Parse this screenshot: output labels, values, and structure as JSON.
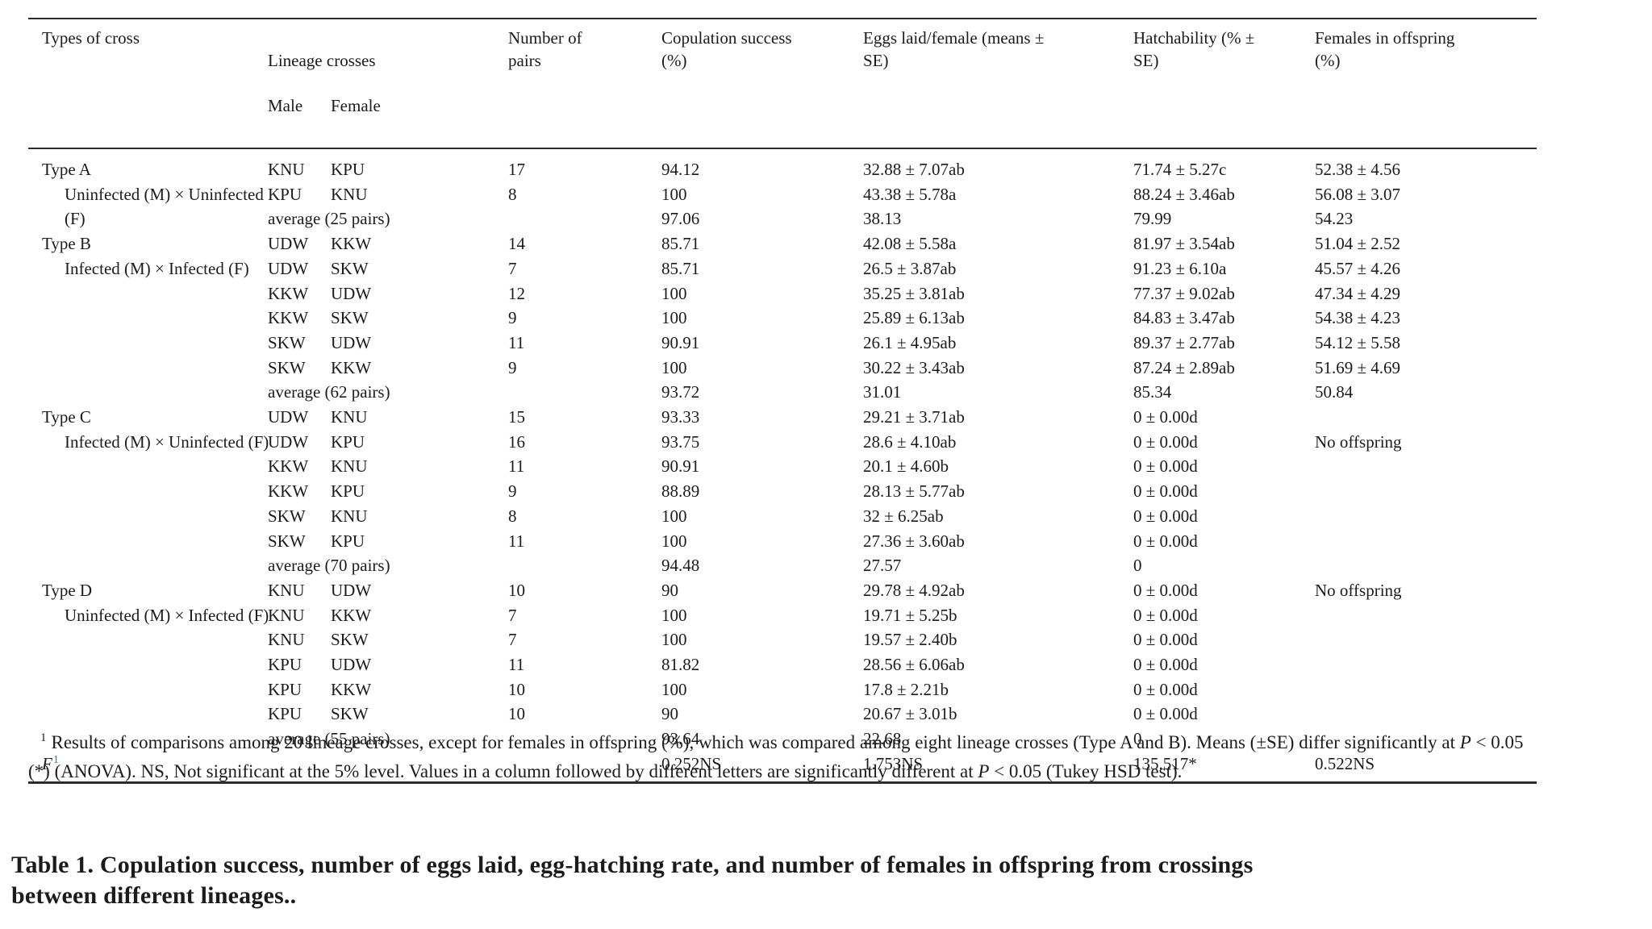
{
  "table": {
    "headers": {
      "types_of_cross": [
        "Types of cross"
      ],
      "lineage": {
        "title": "Lineage crosses",
        "male": "Male",
        "female": "Female"
      },
      "pairs": [
        "Number of",
        "pairs"
      ],
      "copulation": [
        "Copulation success",
        "(%)"
      ],
      "eggs": [
        "Eggs laid/female (means ±",
        "SE)"
      ],
      "hatchability": [
        "Hatchability (% ±",
        "SE)"
      ],
      "females": [
        "Females in offspring",
        "(%)"
      ]
    },
    "rows": [
      {
        "type": "Type A",
        "male": "KNU",
        "female": "KPU",
        "pairs": "17",
        "copulation": "94.12",
        "eggs": "32.88 ± 7.07ab",
        "hatch": "71.74 ± 5.27c",
        "females": "52.38 ± 4.56"
      },
      {
        "type": "Uninfected (M) × Uninfected",
        "indent": 1,
        "male": "KPU",
        "female": "KNU",
        "pairs": "8",
        "copulation": "100",
        "eggs": "43.38 ± 5.78a",
        "hatch": "88.24 ± 3.46ab",
        "females": "56.08 ± 3.07"
      },
      {
        "type": "(F)",
        "indent": 1,
        "average": "average (25 pairs)",
        "copulation": "97.06",
        "eggs": "38.13",
        "hatch": "79.99",
        "females": "54.23"
      },
      {
        "type": "Type B",
        "male": "UDW",
        "female": "KKW",
        "pairs": "14",
        "copulation": "85.71",
        "eggs": "42.08 ± 5.58a",
        "hatch": "81.97 ± 3.54ab",
        "females": "51.04 ± 2.52"
      },
      {
        "type": "Infected (M) × Infected (F)",
        "indent": 1,
        "male": "UDW",
        "female": "SKW",
        "pairs": "7",
        "copulation": "85.71",
        "eggs": "26.5 ± 3.87ab",
        "hatch": "91.23 ± 6.10a",
        "females": "45.57 ± 4.26"
      },
      {
        "male": "KKW",
        "female": "UDW",
        "pairs": "12",
        "copulation": "100",
        "eggs": "35.25 ± 3.81ab",
        "hatch": "77.37 ± 9.02ab",
        "females": "47.34 ± 4.29"
      },
      {
        "male": "KKW",
        "female": "SKW",
        "pairs": "9",
        "copulation": "100",
        "eggs": "25.89 ± 6.13ab",
        "hatch": "84.83 ± 3.47ab",
        "females": "54.38 ± 4.23"
      },
      {
        "male": "SKW",
        "female": "UDW",
        "pairs": "11",
        "copulation": "90.91",
        "eggs": "26.1 ± 4.95ab",
        "hatch": "89.37 ± 2.77ab",
        "females": "54.12 ± 5.58"
      },
      {
        "male": "SKW",
        "female": "KKW",
        "pairs": "9",
        "copulation": "100",
        "eggs": "30.22 ± 3.43ab",
        "hatch": "87.24 ± 2.89ab",
        "females": "51.69 ± 4.69"
      },
      {
        "average": "average (62 pairs)",
        "copulation": "93.72",
        "eggs": "31.01",
        "hatch": "85.34",
        "females": "50.84"
      },
      {
        "type": "Type C",
        "male": "UDW",
        "female": "KNU",
        "pairs": "15",
        "copulation": "93.33",
        "eggs": "29.21 ± 3.71ab",
        "hatch": "0 ± 0.00d"
      },
      {
        "type": "Infected (M) × Uninfected (F)",
        "indent": 1,
        "male": "UDW",
        "female": "KPU",
        "pairs": "16",
        "copulation": "93.75",
        "eggs": "28.6 ± 4.10ab",
        "hatch": "0 ± 0.00d",
        "females": "No offspring"
      },
      {
        "male": "KKW",
        "female": "KNU",
        "pairs": "11",
        "copulation": "90.91",
        "eggs": "20.1 ± 4.60b",
        "hatch": "0 ± 0.00d"
      },
      {
        "male": "KKW",
        "female": "KPU",
        "pairs": "9",
        "copulation": "88.89",
        "eggs": "28.13 ± 5.77ab",
        "hatch": "0 ± 0.00d"
      },
      {
        "male": "SKW",
        "female": "KNU",
        "pairs": "8",
        "copulation": "100",
        "eggs": "32 ± 6.25ab",
        "hatch": "0 ± 0.00d"
      },
      {
        "male": "SKW",
        "female": "KPU",
        "pairs": "11",
        "copulation": "100",
        "eggs": "27.36 ± 3.60ab",
        "hatch": "0 ± 0.00d"
      },
      {
        "average": "average (70 pairs)",
        "copulation": "94.48",
        "eggs": "27.57",
        "hatch": "0"
      },
      {
        "type": "Type D",
        "male": "KNU",
        "female": "UDW",
        "pairs": "10",
        "copulation": "90",
        "eggs": "29.78 ± 4.92ab",
        "hatch": "0 ± 0.00d",
        "females": "No offspring"
      },
      {
        "type": "Uninfected (M) × Infected (F)",
        "indent": 1,
        "male": "KNU",
        "female": "KKW",
        "pairs": "7",
        "copulation": "100",
        "eggs": "19.71 ± 5.25b",
        "hatch": "0 ± 0.00d"
      },
      {
        "male": "KNU",
        "female": "SKW",
        "pairs": "7",
        "copulation": "100",
        "eggs": "19.57 ± 2.40b",
        "hatch": "0 ± 0.00d"
      },
      {
        "male": "KPU",
        "female": "UDW",
        "pairs": "11",
        "copulation": "81.82",
        "eggs": "28.56 ± 6.06ab",
        "hatch": "0 ± 0.00d"
      },
      {
        "male": "KPU",
        "female": "KKW",
        "pairs": "10",
        "copulation": "100",
        "eggs": "17.8 ± 2.21b",
        "hatch": "0 ± 0.00d"
      },
      {
        "male": "KPU",
        "female": "SKW",
        "pairs": "10",
        "copulation": "90",
        "eggs": "20.67 ± 3.01b",
        "hatch": "0 ± 0.00d"
      },
      {
        "average": "average (55 pairs)",
        "copulation": "93.64",
        "eggs": "22.68",
        "hatch": "0"
      }
    ],
    "f_row": {
      "label": "F",
      "sup": "1",
      "copulation": "0.252NS",
      "eggs": "1.753NS",
      "hatch": "135.517*",
      "females": "0.522NS"
    }
  },
  "footnote": {
    "sup": "1",
    "parts": [
      "Results of comparisons among 20 lineage crosses, except for females in offspring (%), which was compared among eight lineage crosses (Type A and B). Means (±SE) differ significantly at ",
      "P",
      " < 0.05 (*) (ANOVA). NS, Not significant at the 5% level. Values in a column followed by different letters are significantly different at ",
      "P",
      " < 0.05 (Tukey HSD test)."
    ]
  },
  "caption": {
    "lines": [
      "Table 1. Copulation success, number of eggs laid, egg-hatching rate, and number of females in offspring from crossings",
      "between different lineages.."
    ]
  }
}
